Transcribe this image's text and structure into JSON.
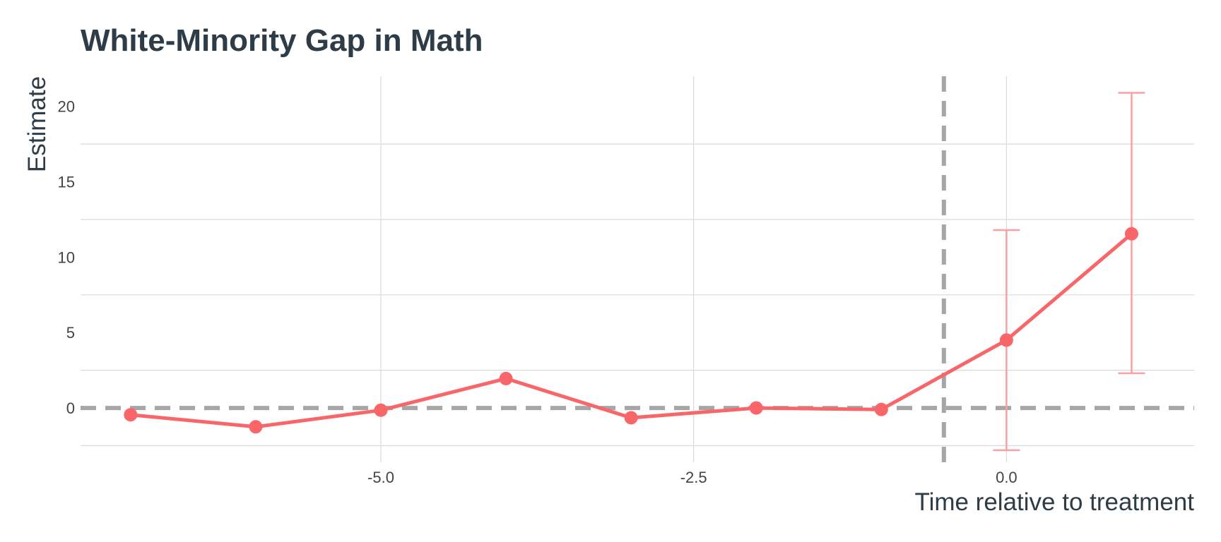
{
  "chart_data": {
    "type": "line",
    "title": "White-Minority Gap in Math",
    "xlabel": "Time relative to treatment",
    "ylabel": "Estimate",
    "xlim": [
      -7.4,
      1.5
    ],
    "ylim": [
      -3.6,
      22
    ],
    "x_ticks": [
      -5.0,
      -2.5,
      0.0
    ],
    "x_tick_labels": [
      "-5.0",
      "-2.5",
      "0.0"
    ],
    "y_ticks": [
      0,
      5,
      10,
      15,
      20
    ],
    "y_tick_labels": [
      "0",
      "5",
      "10",
      "15",
      "20"
    ],
    "y_minor_gridlines": [
      -2.5,
      2.5,
      7.5,
      12.5,
      17.5
    ],
    "grid": true,
    "reference_lines": [
      {
        "axis": "y",
        "value": 0,
        "style": "dashed",
        "color": "#a6a6a6"
      },
      {
        "axis": "x",
        "value": -0.5,
        "style": "dashed",
        "color": "#a6a6a6"
      }
    ],
    "series": [
      {
        "color": "#f8666a",
        "x": [
          -7,
          -6,
          -5,
          -4,
          -3,
          -2,
          -1,
          0,
          1
        ],
        "y": [
          -0.45,
          -1.25,
          -0.15,
          1.95,
          -0.65,
          0.0,
          -0.1,
          4.5,
          11.55
        ]
      }
    ],
    "error_bars": [
      {
        "x": 0,
        "low": -2.8,
        "high": 11.8
      },
      {
        "x": 1,
        "low": 2.3,
        "high": 20.9
      }
    ],
    "error_bar_color": "#f8a0a2"
  }
}
